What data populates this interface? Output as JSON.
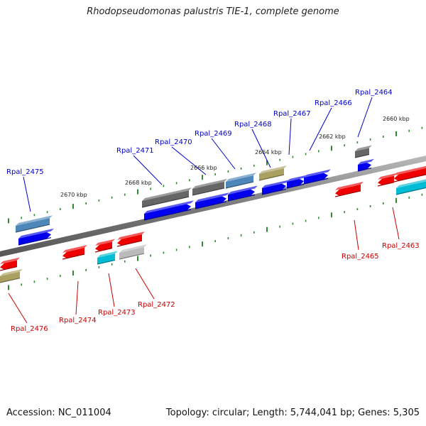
{
  "title": "Rhodopseudomonas palustris TIE-1, complete genome",
  "accession": "Accession: NC_011004",
  "topology": "Topology: circular; Length: 5,744,041 bp; Genes: 5,305",
  "colors": {
    "red": "#ee0000",
    "blue": "#0000ee",
    "gray": "#666666",
    "steel": "#4d86b8",
    "khaki": "#aaa060",
    "cyan": "#00bcd4",
    "silver": "#bbbbbb",
    "tick": "#2e8b2e",
    "backbone": "#888888"
  },
  "kbp_labels": [
    "2660 kbp",
    "2662 kbp",
    "2664 kbp",
    "2666 kbp",
    "2668 kbp",
    "2670 kbp"
  ],
  "genes_top": [
    "Rpal_2464",
    "Rpal_2466",
    "Rpal_2467",
    "Rpal_2468",
    "Rpal_2469",
    "Rpal_2470",
    "Rpal_2471",
    "Rpal_2475"
  ],
  "genes_bottom": [
    "Rpal_2463",
    "Rpal_2465",
    "Rpal_2472",
    "Rpal_2473",
    "Rpal_2474",
    "Rpal_2476"
  ]
}
